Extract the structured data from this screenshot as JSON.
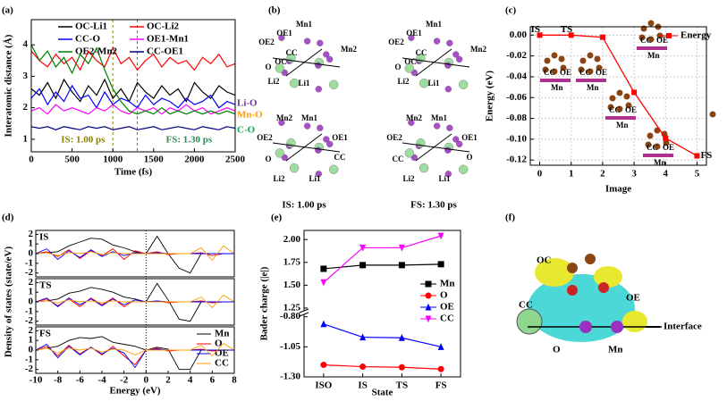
{
  "chart_data": [
    {
      "type": "line",
      "panel": "(a)",
      "xlabel": "Time (fs)",
      "ylabel": "Interatomic distance (Å)",
      "xlim": [
        0,
        2500
      ],
      "ylim": [
        0.6,
        4.8
      ],
      "xticks": [
        0,
        500,
        1000,
        1500,
        2000,
        2500
      ],
      "yticks": [
        1,
        2,
        3,
        4
      ],
      "x": [
        0,
        100,
        200,
        300,
        400,
        500,
        600,
        700,
        800,
        900,
        1000,
        1100,
        1200,
        1300,
        1400,
        1500,
        1600,
        1700,
        1800,
        1900,
        2000,
        2100,
        2200,
        2300,
        2400,
        2500
      ],
      "series": [
        {
          "name": "OC-Li1",
          "color": "#000000",
          "values": [
            2.6,
            2.4,
            2.8,
            2.3,
            2.9,
            2.5,
            2.2,
            2.7,
            2.4,
            2.9,
            2.3,
            2.6,
            2.2,
            2.8,
            2.5,
            2.3,
            2.7,
            2.4,
            2.6,
            2.2,
            2.8,
            2.5,
            2.3,
            2.7,
            2.5,
            2.4
          ]
        },
        {
          "name": "OC-Li2",
          "color": "#ff0000",
          "values": [
            3.8,
            3.5,
            3.3,
            3.7,
            3.4,
            3.6,
            3.2,
            3.8,
            3.5,
            3.3,
            3.9,
            3.4,
            3.6,
            3.2,
            3.5,
            3.7,
            3.3,
            3.6,
            3.4,
            3.5,
            3.2,
            3.6,
            3.4,
            3.7,
            3.3,
            3.4
          ]
        },
        {
          "name": "CC-O",
          "color": "#0000ff",
          "values": [
            2.3,
            2.6,
            2.1,
            2.5,
            2.2,
            2.7,
            2.3,
            2.4,
            2.0,
            2.5,
            2.1,
            2.3,
            2.2,
            2.0,
            2.4,
            2.1,
            2.3,
            2.2,
            2.0,
            2.3,
            2.1,
            2.2,
            2.4,
            2.0,
            2.2,
            2.1
          ]
        },
        {
          "name": "OE1-Mn1",
          "color": "#ff00ff",
          "values": [
            1.9,
            2.0,
            1.8,
            2.1,
            1.9,
            2.0,
            1.9,
            1.8,
            2.0,
            1.9,
            2.1,
            1.9,
            1.8,
            2.0,
            1.9,
            2.0,
            1.8,
            2.0,
            1.9,
            2.1,
            1.9,
            2.0,
            1.8,
            1.9,
            2.0,
            1.9
          ]
        },
        {
          "name": "OE2-Mn2",
          "color": "#008000",
          "values": [
            4.0,
            3.5,
            3.8,
            3.3,
            3.6,
            3.1,
            3.7,
            3.4,
            3.9,
            3.2,
            2.6,
            2.2,
            1.9,
            1.8,
            1.9,
            1.8,
            2.0,
            1.8,
            1.9,
            1.8,
            1.9,
            1.8,
            1.9,
            1.8,
            1.9,
            1.8
          ]
        },
        {
          "name": "CC-OE1",
          "color": "#000080",
          "values": [
            1.4,
            1.35,
            1.4,
            1.3,
            1.4,
            1.35,
            1.3,
            1.4,
            1.35,
            1.4,
            1.3,
            1.35,
            1.4,
            1.3,
            1.35,
            1.4,
            1.3,
            1.35,
            1.4,
            1.35,
            1.3,
            1.4,
            1.35,
            1.3,
            1.4,
            1.35
          ]
        }
      ],
      "markers": [
        {
          "x": 1000,
          "label": "IS: 1.00 ps",
          "color": "#8b8000"
        },
        {
          "x": 1300,
          "label": "FS: 1.30 ps",
          "color": "#2e8b57"
        }
      ],
      "annotations": [
        {
          "text": "Li-O",
          "color": "#7030a0"
        },
        {
          "text": "Mn-O",
          "color": "#ff9900"
        },
        {
          "text": "C-O",
          "color": "#00b050"
        }
      ]
    },
    {
      "type": "line",
      "panel": "(c)",
      "xlabel": "Image",
      "ylabel": "Energy (eV)",
      "xlim": [
        -0.3,
        5.3
      ],
      "ylim": [
        -0.125,
        0.008
      ],
      "xticks": [
        0,
        1,
        2,
        3,
        4,
        5
      ],
      "yticks": [
        {
          "value": 0,
          "label": "0.00"
        },
        {
          "value": -0.02,
          "label": "-0.02"
        },
        {
          "value": -0.04,
          "label": "-0.04"
        },
        {
          "value": -0.06,
          "label": "-0.06"
        },
        {
          "value": -0.08,
          "label": "-0.08"
        },
        {
          "value": -0.1,
          "label": "-0.10"
        },
        {
          "value": -0.12,
          "label": "-0.12"
        }
      ],
      "grid": true,
      "x": [
        0,
        1,
        2,
        3,
        4,
        5
      ],
      "series": [
        {
          "name": "Energy",
          "color": "#ff0000",
          "values": [
            0,
            0,
            -0.002,
            -0.055,
            -0.099,
            -0.116
          ]
        }
      ],
      "annotations": [
        "IS",
        "TS",
        "FS"
      ],
      "icon_labels": [
        "CC",
        "OE",
        "Mn"
      ]
    },
    {
      "type": "line",
      "panel": "(d)",
      "label": "IS",
      "xlim": [
        -10,
        8
      ],
      "ylim": [
        -2.4,
        2.4
      ],
      "yticks": [
        -2,
        -1,
        0,
        1,
        2
      ],
      "x": [
        -10,
        -9,
        -8,
        -7,
        -6,
        -5,
        -4,
        -3,
        -2,
        -1,
        0,
        1,
        2,
        3,
        4,
        5,
        6,
        7,
        8
      ],
      "series": [
        {
          "color": "#000000",
          "values": [
            0,
            0.1,
            0.2,
            0.8,
            1.2,
            1.6,
            1.5,
            0.9,
            0.6,
            0.2,
            0,
            1.8,
            0,
            -1.5,
            -2,
            0,
            0,
            0,
            0
          ]
        },
        {
          "color": "#ff0000",
          "values": [
            0,
            0.2,
            -0.3,
            0.4,
            -0.5,
            0.3,
            -0.2,
            0.5,
            -0.6,
            0.3,
            0,
            0.2,
            -0.1,
            0,
            0,
            0.1,
            -0.2,
            0,
            0
          ]
        },
        {
          "color": "#0000ff",
          "values": [
            0,
            0.5,
            -0.6,
            0.3,
            -0.4,
            0.4,
            -0.3,
            0.2,
            -0.2,
            0.1,
            0,
            0.1,
            0,
            0,
            0,
            0,
            0,
            0,
            0
          ]
        },
        {
          "color": "#ff9900",
          "values": [
            0,
            0.1,
            -0.2,
            0.1,
            0,
            0.2,
            -0.1,
            0.1,
            0,
            0,
            0,
            0,
            0,
            0,
            0,
            0.6,
            -0.7,
            0.8,
            0
          ]
        }
      ]
    },
    {
      "type": "line",
      "panel": "(d)",
      "label": "TS",
      "ylabel": "Density of states (state/eV)",
      "xlim": [
        -10,
        8
      ],
      "ylim": [
        -2.4,
        2.4
      ],
      "yticks": [
        -2,
        -1,
        0,
        1,
        2
      ],
      "x": [
        -10,
        -9,
        -8,
        -7,
        -6,
        -5,
        -4,
        -3,
        -2,
        -1,
        0,
        1,
        2,
        3,
        4,
        5,
        6,
        7,
        8
      ],
      "series": [
        {
          "color": "#000000",
          "values": [
            0,
            0.1,
            0.3,
            0.9,
            1.1,
            1.5,
            1.3,
            1.0,
            0.5,
            0.3,
            0,
            1.9,
            0.2,
            -1.8,
            -2,
            0,
            0,
            0,
            0
          ]
        },
        {
          "color": "#ff0000",
          "values": [
            0,
            0.3,
            -0.4,
            0.3,
            -0.5,
            0.4,
            -0.3,
            0.4,
            -0.5,
            0.2,
            0,
            0.1,
            -0.1,
            0,
            0,
            0.1,
            -0.1,
            0,
            0
          ]
        },
        {
          "color": "#0000ff",
          "values": [
            0,
            0.4,
            -0.5,
            0.4,
            -0.3,
            0.3,
            -0.4,
            0.3,
            -0.3,
            0.2,
            0,
            0.1,
            0,
            0,
            0,
            0,
            0,
            0,
            0
          ]
        },
        {
          "color": "#ff9900",
          "values": [
            0,
            0.1,
            -0.1,
            0.2,
            0,
            0.1,
            -0.1,
            0.1,
            0,
            0,
            0,
            0,
            0,
            0,
            0,
            0.5,
            -0.6,
            0.7,
            0
          ]
        }
      ]
    },
    {
      "type": "line",
      "panel": "(d)",
      "label": "FS",
      "xlabel": "Energy (eV)",
      "xlim": [
        -10,
        8
      ],
      "ylim": [
        -2.4,
        2.4
      ],
      "yticks": [
        -2,
        -1,
        0,
        1,
        2
      ],
      "xticks": [
        -10,
        -8,
        -6,
        -4,
        -2,
        0,
        2,
        4,
        6,
        8
      ],
      "x": [
        -10,
        -9,
        -8,
        -7,
        -6,
        -5,
        -4,
        -3,
        -2,
        -1,
        0,
        1,
        2,
        3,
        4,
        5,
        6,
        7,
        8
      ],
      "series": [
        {
          "name": "Mn",
          "color": "#000000",
          "values": [
            0,
            0.2,
            0.4,
            1.0,
            1.3,
            1.2,
            1.4,
            0.8,
            0.6,
            0.4,
            0,
            0.3,
            0.1,
            -2,
            -2,
            0,
            0,
            0,
            0
          ]
        },
        {
          "name": "O",
          "color": "#ff0000",
          "values": [
            0,
            0.4,
            -0.6,
            0.5,
            -0.4,
            0.3,
            -0.5,
            0.4,
            -0.6,
            -1.5,
            0,
            0.2,
            -0.1,
            0,
            0,
            0.1,
            -0.1,
            0,
            0
          ]
        },
        {
          "name": "OE",
          "color": "#0000ff",
          "values": [
            0,
            0.6,
            -0.8,
            0.4,
            -0.5,
            0.3,
            -0.4,
            0.2,
            -0.3,
            -1.8,
            0,
            0.1,
            0,
            0,
            0,
            0,
            0,
            0,
            0
          ]
        },
        {
          "name": "CC",
          "color": "#ff9900",
          "values": [
            0,
            0.2,
            -0.3,
            0.2,
            0,
            0.2,
            -0.2,
            0.1,
            0,
            -0.5,
            0,
            0,
            0,
            0,
            0,
            0.5,
            -0.6,
            0.7,
            0
          ]
        }
      ]
    },
    {
      "type": "broken-line",
      "panel": "(e)",
      "xlabel": "State",
      "ylabel": "Bader charge (|e|)",
      "categories": [
        "ISO",
        "IS",
        "TS",
        "FS"
      ],
      "ylim": [
        -1.3,
        2.1
      ],
      "ybreak": [
        -0.78,
        1.22
      ],
      "yticks": [
        {
          "value": -1.3,
          "label": "-1.30"
        },
        -1.05,
        {
          "value": -0.8,
          "label": "-0.80"
        },
        1.25,
        {
          "value": 1.5,
          "label": "1.50"
        },
        1.75,
        {
          "value": 2,
          "label": "2.00"
        }
      ],
      "series": [
        {
          "name": "Mn",
          "color": "#000000",
          "marker": "square",
          "values": [
            1.68,
            1.72,
            1.72,
            1.73
          ]
        },
        {
          "name": "O",
          "color": "#ff0000",
          "marker": "circle",
          "values": [
            -1.2,
            -1.215,
            -1.22,
            -1.235
          ]
        },
        {
          "name": "OE",
          "color": "#0000ff",
          "marker": "triangle-up",
          "values": [
            -0.86,
            -0.97,
            -0.975,
            -1.05
          ]
        },
        {
          "name": "CC",
          "color": "#ff00ff",
          "marker": "triangle-down",
          "values": [
            1.53,
            1.91,
            1.91,
            2.04
          ]
        }
      ]
    }
  ],
  "structures": {
    "b": {
      "panel": "(b)",
      "captions": [
        "IS: 1.00 ps",
        "FS: 1.30 ps"
      ],
      "views": [
        {
          "labels": [
            "Mn1",
            "OE2",
            "OE1",
            "Mn2",
            "OC",
            "CC",
            "O",
            "Li2",
            "Li1"
          ]
        },
        {
          "labels": [
            "Mn2",
            "Mn1",
            "OE2",
            "OE1",
            "O",
            "CC",
            "Li2",
            "Li1"
          ]
        },
        {
          "labels": [
            "Mn1",
            "OE2",
            "OE1",
            "Mn2",
            "OC",
            "CC",
            "O",
            "Li2",
            "Li1"
          ]
        },
        {
          "labels": [
            "Mn2",
            "Mn1",
            "OE2",
            "OE1",
            "CC",
            "O",
            "Li2",
            "Li1"
          ]
        }
      ]
    },
    "f": {
      "panel": "(f)",
      "labels": [
        "OC",
        "CC",
        "OE",
        "O",
        "Mn",
        "Interface"
      ]
    }
  }
}
